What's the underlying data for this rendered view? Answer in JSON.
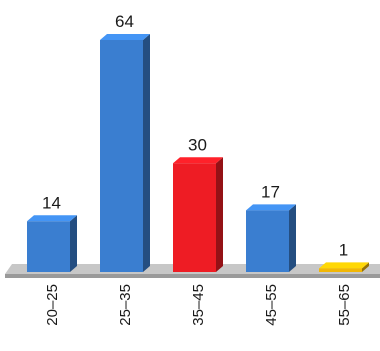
{
  "chart_data": {
    "type": "bar",
    "categories": [
      "20–25",
      "25–35",
      "35–45",
      "45–55",
      "55–65"
    ],
    "values": [
      14,
      64,
      30,
      17,
      1
    ],
    "data_labels": [
      "14",
      "64",
      "30",
      "17",
      "1"
    ],
    "colors": [
      "#3a7ed0",
      "#3a7ed0",
      "#ee1c24",
      "#3a7ed0",
      "#f2b705"
    ],
    "ylim": [
      0,
      64
    ],
    "title": "",
    "xlabel": "",
    "ylabel": "",
    "grid": false,
    "style": "3d-bars"
  }
}
